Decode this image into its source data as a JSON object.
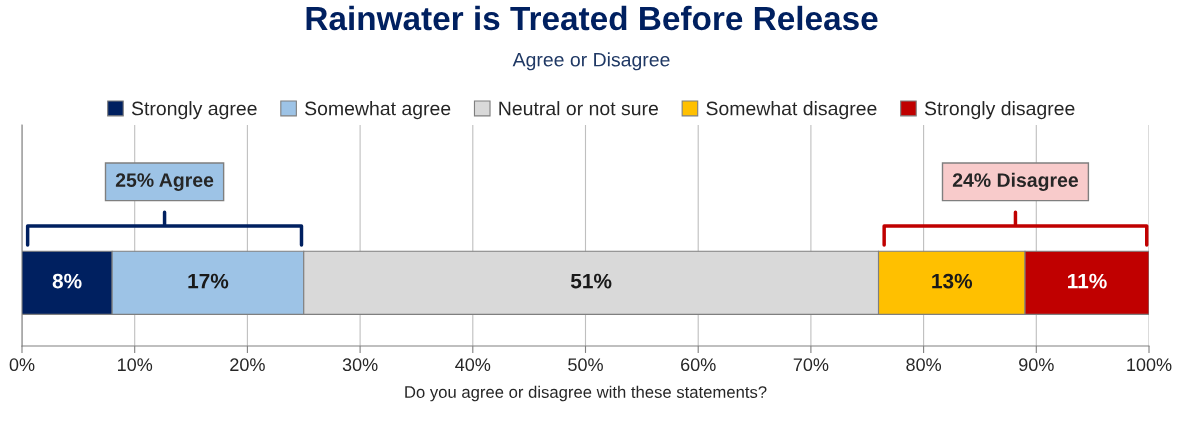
{
  "chart_data": {
    "type": "bar",
    "orientation": "horizontal",
    "stacked": true,
    "title": "Rainwater is Treated Before Release",
    "subtitle": "Agree or Disagree",
    "xlabel": "Do you agree or disagree with these statements?",
    "categories": [
      null
    ],
    "series": [
      {
        "name": "Strongly agree",
        "color": "#002060",
        "values": [
          8
        ],
        "value_labels": [
          "8%"
        ]
      },
      {
        "name": "Somewhat agree",
        "color": "#9dc3e6",
        "values": [
          17
        ],
        "value_labels": [
          "17%"
        ]
      },
      {
        "name": "Neutral or not sure",
        "color": "#d9d9d9",
        "values": [
          51
        ],
        "value_labels": [
          "51%"
        ]
      },
      {
        "name": "Somewhat disagree",
        "color": "#ffc000",
        "values": [
          13
        ],
        "value_labels": [
          "13%"
        ]
      },
      {
        "name": "Strongly disagree",
        "color": "#c00000",
        "values": [
          11
        ],
        "value_labels": [
          "11%"
        ]
      }
    ],
    "annotations": [
      "25% Agree",
      "24% Disagree"
    ],
    "xlim": [
      0,
      100
    ],
    "xticks": [
      {
        "value": 0,
        "label": "0%"
      },
      {
        "value": 10,
        "label": "10%"
      },
      {
        "value": 20,
        "label": "20%"
      },
      {
        "value": 30,
        "label": "30%"
      },
      {
        "value": 40,
        "label": "40%"
      },
      {
        "value": 50,
        "label": "50%"
      },
      {
        "value": 60,
        "label": "60%"
      },
      {
        "value": 70,
        "label": "70%"
      },
      {
        "value": 80,
        "label": "80%"
      },
      {
        "value": 90,
        "label": "90%"
      },
      {
        "value": 100,
        "label": "100%"
      }
    ],
    "grid": "x",
    "legend": "top"
  }
}
